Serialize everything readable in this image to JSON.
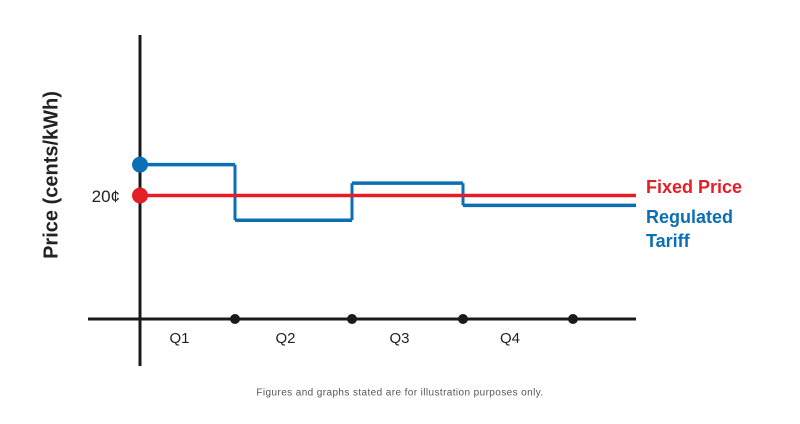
{
  "chart_data": {
    "type": "step",
    "y_label": "Price (cents/kWh)",
    "footnote": "Figures and graphs stated are for illustration purposes only.",
    "categories": [
      "Q1",
      "Q2",
      "Q3",
      "Q4"
    ],
    "series": [
      {
        "name": "Fixed Price",
        "color": "#e31e26",
        "values": [
          20,
          20,
          20,
          20
        ]
      },
      {
        "name": "Regulated Tariff",
        "color": "#0a6fb4",
        "values": [
          25,
          16,
          22,
          18.4
        ]
      }
    ],
    "ylim": [
      0,
      46
    ],
    "yticks": [
      {
        "value": 20,
        "label": "20¢"
      }
    ]
  }
}
